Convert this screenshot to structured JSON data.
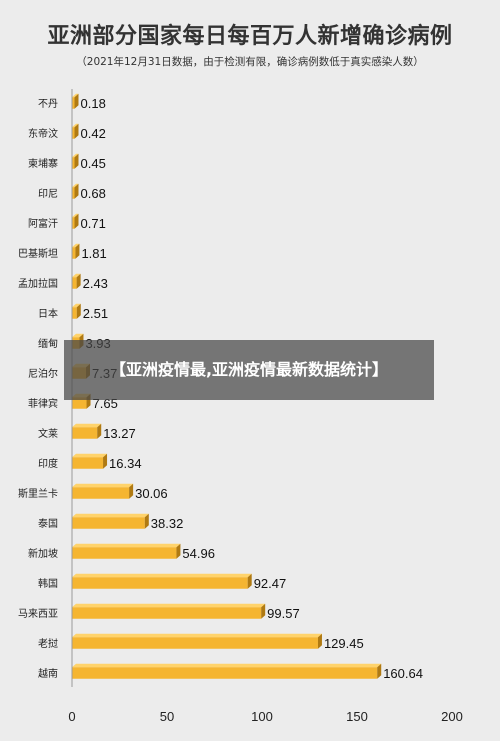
{
  "chart_data": {
    "type": "bar",
    "orientation": "horizontal",
    "title": "亚洲部分国家每日每百万人新增确诊病例",
    "subtitle": "（2021年12月31日数据，由于检测有限，确诊病例数低于真实感染人数）",
    "categories": [
      "不丹",
      "东帝汶",
      "柬埔寨",
      "印尼",
      "阿富汗",
      "巴基斯坦",
      "孟加拉国",
      "日本",
      "缅甸",
      "尼泊尔",
      "菲律宾",
      "文莱",
      "印度",
      "斯里兰卡",
      "泰国",
      "新加坡",
      "韩国",
      "马来西亚",
      "老挝",
      "越南"
    ],
    "values": [
      0.18,
      0.42,
      0.45,
      0.68,
      0.71,
      1.81,
      2.43,
      2.51,
      3.93,
      7.37,
      7.65,
      13.27,
      16.34,
      30.06,
      38.32,
      54.96,
      92.47,
      99.57,
      129.45,
      160.64
    ],
    "value_labels": [
      "0.18",
      "0.42",
      "0.45",
      "0.68",
      "0.71",
      "1.81",
      "2.43",
      "2.51",
      "3.93",
      "7.37",
      "7.65",
      "13.27",
      "16.34",
      "30.06",
      "38.32",
      "54.96",
      "92.47",
      "99.57",
      "129.45",
      "160.64"
    ],
    "xlim": [
      0,
      200
    ],
    "xticks": [
      0,
      50,
      100,
      150,
      200
    ],
    "grid": false,
    "legend": "none",
    "bar_color": "#f5b531",
    "bar_top_color": "#ffd36b",
    "bar_edge_color": "#b07a12"
  },
  "banner": {
    "text": "【亚洲疫情最,亚洲疫情最新数据统计】"
  }
}
